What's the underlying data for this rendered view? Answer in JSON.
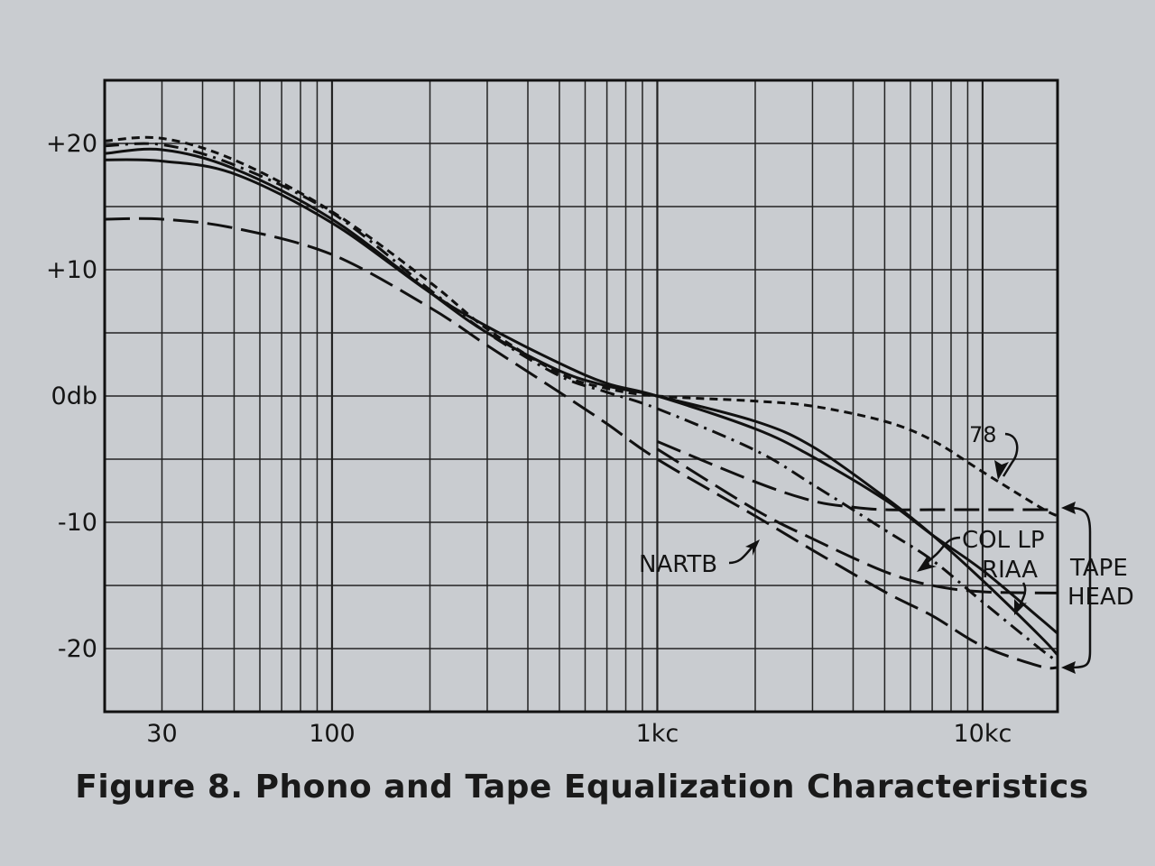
{
  "caption": "Figure 8.  Phono and Tape Equalization Characteristics",
  "chart_data": {
    "type": "line",
    "x_scale": "log",
    "xlim": [
      20,
      17000
    ],
    "ylim": [
      -25,
      25
    ],
    "grid": true,
    "x_ticks": [
      {
        "value": 30,
        "label": "30"
      },
      {
        "value": 100,
        "label": "100"
      },
      {
        "value": 1000,
        "label": "1kc"
      },
      {
        "value": 10000,
        "label": "10kc"
      }
    ],
    "y_ticks": [
      {
        "value": 20,
        "label": "+20"
      },
      {
        "value": 10,
        "label": "+10"
      },
      {
        "value": 0,
        "label": "0db"
      },
      {
        "value": -10,
        "label": "-10"
      },
      {
        "value": -20,
        "label": "-20"
      }
    ],
    "series": [
      {
        "name": "78",
        "dash": "9,6",
        "x": [
          20,
          30,
          50,
          100,
          200,
          300,
          500,
          700,
          1000,
          2000,
          3000,
          5000,
          7000,
          10000,
          15000,
          17000
        ],
        "y": [
          20.2,
          20.4,
          18.7,
          14.6,
          9.0,
          5.3,
          1.8,
          0.6,
          0.0,
          -0.4,
          -0.8,
          -2.0,
          -3.5,
          -6.0,
          -8.8,
          -9.5
        ]
      },
      {
        "name": "COL LP",
        "dash": "",
        "x": [
          20,
          30,
          50,
          100,
          200,
          300,
          500,
          700,
          1000,
          2000,
          3000,
          5000,
          7000,
          10000,
          15000,
          17000
        ],
        "y": [
          19.2,
          19.5,
          18.0,
          14.0,
          8.2,
          5.0,
          2.0,
          0.8,
          0.0,
          -2.0,
          -4.0,
          -8.0,
          -11.0,
          -14.6,
          -19.0,
          -20.5
        ]
      },
      {
        "name": "RIAA",
        "dash": "",
        "x": [
          20,
          30,
          50,
          100,
          200,
          300,
          500,
          700,
          1000,
          2000,
          3000,
          5000,
          7000,
          10000,
          15000,
          17000
        ],
        "y": [
          18.7,
          18.6,
          17.6,
          13.7,
          8.2,
          5.5,
          2.6,
          1.0,
          0.0,
          -2.6,
          -4.8,
          -8.2,
          -11.0,
          -13.8,
          -17.6,
          -18.8
        ]
      },
      {
        "name": "TAPE HEAD",
        "dash": "16,7,3,7",
        "x": [
          20,
          30,
          50,
          100,
          200,
          300,
          500,
          700,
          1000,
          2000,
          3000,
          5000,
          7000,
          10000,
          15000,
          17000
        ],
        "y": [
          19.8,
          19.9,
          18.3,
          14.5,
          8.4,
          5.0,
          1.6,
          0.3,
          -1.0,
          -4.3,
          -7.0,
          -10.6,
          -13.0,
          -16.3,
          -20.0,
          -21.0
        ]
      },
      {
        "name": "NARTB",
        "dash": "28,10",
        "x": [
          20,
          30,
          50,
          100,
          200,
          300,
          500,
          700,
          1000,
          2000,
          3000,
          5000,
          7000,
          10000,
          15000,
          17000
        ],
        "y": [
          14.0,
          14.0,
          13.3,
          11.2,
          7.0,
          4.0,
          0.3,
          -2.2,
          -5.0,
          -9.5,
          -12.2,
          -15.5,
          -17.4,
          -19.8,
          -21.4,
          -21.5
        ]
      },
      {
        "name": "",
        "dash": "28,10",
        "x": [
          1000,
          2000,
          3000,
          4000,
          5000,
          7000,
          10000,
          17000
        ],
        "y": [
          -3.6,
          -6.8,
          -8.3,
          -8.8,
          -9.0,
          -9.0,
          -9.0,
          -9.0
        ]
      },
      {
        "name": "",
        "dash": "28,10",
        "x": [
          1000,
          2000,
          3000,
          5000,
          7000,
          10000,
          17000
        ],
        "y": [
          -4.2,
          -9.0,
          -11.3,
          -13.9,
          -15.0,
          -15.5,
          -15.6
        ]
      }
    ],
    "annotations": [
      {
        "text": "78"
      },
      {
        "text": "COL LP"
      },
      {
        "text": "RIAA"
      },
      {
        "text": "NARTB"
      },
      {
        "text": "TAPE"
      },
      {
        "text": "HEAD"
      }
    ]
  }
}
